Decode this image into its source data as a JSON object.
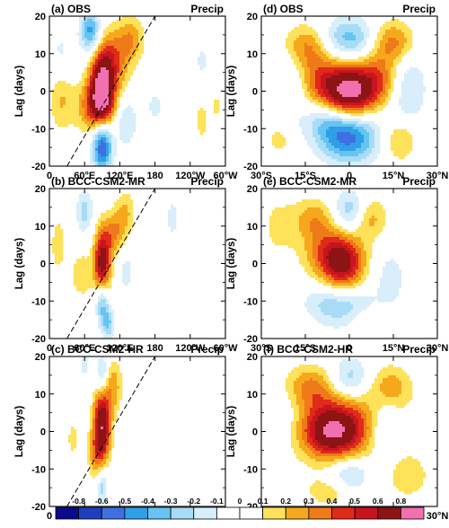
{
  "figure": {
    "panels": [
      {
        "label": "(a) OBS",
        "var": "Precip",
        "type": "lon"
      },
      {
        "label": "(d) OBS",
        "var": "Precip",
        "type": "lat"
      },
      {
        "label": "(b) BCC-CSM2-MR",
        "var": "Precip",
        "type": "lon"
      },
      {
        "label": "(e) BCC-CSM2-MR",
        "var": "Precip",
        "type": "lat"
      },
      {
        "label": "(c) BCC-CSM2-HR",
        "var": "Precip",
        "type": "lon"
      },
      {
        "label": "(f) BCC-CSM2-HR",
        "var": "Precip",
        "type": "lat"
      }
    ],
    "ylabel": "Lag (days)",
    "y_ticks": [
      "20",
      "10",
      "0",
      "-10",
      "-20"
    ],
    "lon_ticks": [
      "0",
      "60°E",
      "120°E",
      "180",
      "120°W",
      "60°W"
    ],
    "lat_ticks": [
      "30°S",
      "15°S",
      "0",
      "15°N",
      "30°N"
    ],
    "colorbar": {
      "levels": [
        "-0.8",
        "-0.6",
        "-0.5",
        "-0.4",
        "-0.3",
        "-0.2",
        "-0.1",
        "0",
        "0.1",
        "0.2",
        "0.3",
        "0.4",
        "0.5",
        "0.6",
        "0.8"
      ],
      "colors": [
        "#0a0a8c",
        "#1f3fbf",
        "#3f6fe0",
        "#2f9fe8",
        "#66c4f2",
        "#a8dcf6",
        "#d8eefb",
        "#ffffff",
        "#ffffff",
        "#fde25a",
        "#f6a81c",
        "#ef7a1a",
        "#e02a1a",
        "#c8141e",
        "#8c1414",
        "#f26fb0"
      ]
    }
  },
  "chart_data": [
    {
      "type": "heatmap",
      "title": "(a) OBS",
      "subtitle": "Precip",
      "xlabel": "",
      "ylabel": "Lag (days)",
      "xlim": [
        0,
        300
      ],
      "ylim": [
        -20,
        20
      ],
      "dashed_line": {
        "x": [
          30,
          180
        ],
        "y": [
          -20,
          20
        ]
      },
      "blobs": [
        {
          "x": 90,
          "y": 0,
          "sx": 14,
          "sy": 7,
          "a": 0.85
        },
        {
          "x": 75,
          "y": -4,
          "sx": 22,
          "sy": 5,
          "a": 0.35
        },
        {
          "x": 110,
          "y": 8,
          "sx": 20,
          "sy": 6,
          "a": 0.35
        },
        {
          "x": 140,
          "y": 14,
          "sx": 16,
          "sy": 4,
          "a": 0.25
        },
        {
          "x": 20,
          "y": 0,
          "sx": 14,
          "sy": 7,
          "a": 0.25
        },
        {
          "x": 260,
          "y": -8,
          "sx": 8,
          "sy": 4,
          "a": 0.15
        },
        {
          "x": 285,
          "y": -4,
          "sx": 6,
          "sy": 4,
          "a": 0.12
        },
        {
          "x": 90,
          "y": -14,
          "sx": 12,
          "sy": 5,
          "a": -0.7
        },
        {
          "x": 70,
          "y": 16,
          "sx": 12,
          "sy": 4,
          "a": -0.45
        },
        {
          "x": 20,
          "y": 8,
          "sx": 16,
          "sy": 6,
          "a": -0.2
        },
        {
          "x": 130,
          "y": -8,
          "sx": 14,
          "sy": 5,
          "a": -0.2
        },
        {
          "x": 180,
          "y": -4,
          "sx": 14,
          "sy": 4,
          "a": -0.12
        },
        {
          "x": 260,
          "y": 8,
          "sx": 10,
          "sy": 4,
          "a": -0.12
        }
      ]
    },
    {
      "type": "heatmap",
      "title": "(d) OBS",
      "subtitle": "Precip",
      "xlabel": "",
      "ylabel": "Lag (days)",
      "xlim": [
        -30,
        30
      ],
      "ylim": [
        -20,
        20
      ],
      "blobs": [
        {
          "x": 0,
          "y": 0,
          "sx": 6,
          "sy": 5,
          "a": 0.9
        },
        {
          "x": -11,
          "y": 3,
          "sx": 5,
          "sy": 5,
          "a": 0.35
        },
        {
          "x": 11,
          "y": 3,
          "sx": 5,
          "sy": 5,
          "a": 0.35
        },
        {
          "x": -15,
          "y": 12,
          "sx": 5,
          "sy": 4,
          "a": 0.3
        },
        {
          "x": 15,
          "y": 13,
          "sx": 5,
          "sy": 4,
          "a": 0.35
        },
        {
          "x": 17,
          "y": -13,
          "sx": 4,
          "sy": 4,
          "a": 0.25
        },
        {
          "x": -24,
          "y": -13,
          "sx": 3,
          "sy": 3,
          "a": 0.15
        },
        {
          "x": 0,
          "y": -12,
          "sx": 7,
          "sy": 5,
          "a": -0.55
        },
        {
          "x": -8,
          "y": -8,
          "sx": 5,
          "sy": 4,
          "a": -0.2
        },
        {
          "x": 0,
          "y": 14,
          "sx": 6,
          "sy": 4,
          "a": -0.35
        },
        {
          "x": 19,
          "y": 1,
          "sx": 5,
          "sy": 7,
          "a": -0.25
        },
        {
          "x": -19,
          "y": 1,
          "sx": 5,
          "sy": 7,
          "a": -0.15
        }
      ]
    },
    {
      "type": "heatmap",
      "title": "(b) BCC-CSM2-MR",
      "subtitle": "Precip",
      "xlabel": "",
      "ylabel": "Lag (days)",
      "xlim": [
        0,
        300
      ],
      "ylim": [
        -20,
        20
      ],
      "dashed_line": {
        "x": [
          30,
          180
        ],
        "y": [
          -20,
          20
        ]
      },
      "blobs": [
        {
          "x": 90,
          "y": 0,
          "sx": 10,
          "sy": 6,
          "a": 0.7
        },
        {
          "x": 110,
          "y": 8,
          "sx": 14,
          "sy": 4,
          "a": 0.3
        },
        {
          "x": 130,
          "y": 14,
          "sx": 12,
          "sy": 4,
          "a": 0.2
        },
        {
          "x": 55,
          "y": -3,
          "sx": 12,
          "sy": 4,
          "a": 0.2
        },
        {
          "x": 15,
          "y": 5,
          "sx": 10,
          "sy": 6,
          "a": 0.15
        },
        {
          "x": 90,
          "y": -10,
          "sx": 8,
          "sy": 4,
          "a": -0.4
        },
        {
          "x": 100,
          "y": -16,
          "sx": 8,
          "sy": 3,
          "a": -0.3
        },
        {
          "x": 60,
          "y": 14,
          "sx": 10,
          "sy": 4,
          "a": -0.25
        },
        {
          "x": 130,
          "y": -2,
          "sx": 10,
          "sy": 4,
          "a": -0.15
        },
        {
          "x": 210,
          "y": 12,
          "sx": 6,
          "sy": 3,
          "a": -0.2
        }
      ]
    },
    {
      "type": "heatmap",
      "title": "(e) BCC-CSM2-MR",
      "subtitle": "Precip",
      "xlabel": "",
      "ylabel": "Lag (days)",
      "xlim": [
        -30,
        30
      ],
      "ylim": [
        -20,
        20
      ],
      "blobs": [
        {
          "x": -2,
          "y": 0,
          "sx": 5,
          "sy": 5,
          "a": 0.6
        },
        {
          "x": -8,
          "y": 3,
          "sx": 6,
          "sy": 5,
          "a": 0.3
        },
        {
          "x": -12,
          "y": 12,
          "sx": 5,
          "sy": 4,
          "a": 0.25
        },
        {
          "x": 7,
          "y": 12,
          "sx": 4,
          "sy": 4,
          "a": 0.25
        },
        {
          "x": 3,
          "y": -14,
          "sx": 5,
          "sy": 3,
          "a": 0.18
        },
        {
          "x": -24,
          "y": 10,
          "sx": 4,
          "sy": 5,
          "a": 0.15
        },
        {
          "x": 0,
          "y": -12,
          "sx": 6,
          "sy": 4,
          "a": -0.35
        },
        {
          "x": -10,
          "y": -10,
          "sx": 5,
          "sy": 4,
          "a": -0.15
        },
        {
          "x": 0,
          "y": 14,
          "sx": 4,
          "sy": 4,
          "a": -0.3
        },
        {
          "x": 14,
          "y": -4,
          "sx": 4,
          "sy": 6,
          "a": -0.15
        }
      ]
    },
    {
      "type": "heatmap",
      "title": "(c) BCC-CSM2-HR",
      "subtitle": "Precip",
      "xlabel": "",
      "ylabel": "Lag (days)",
      "xlim": [
        0,
        300
      ],
      "ylim": [
        -20,
        20
      ],
      "dashed_line": {
        "x": [
          30,
          180
        ],
        "y": [
          -20,
          20
        ]
      },
      "blobs": [
        {
          "x": 90,
          "y": 2,
          "sx": 10,
          "sy": 7,
          "a": 0.75
        },
        {
          "x": 80,
          "y": -6,
          "sx": 10,
          "sy": 5,
          "a": 0.25
        },
        {
          "x": 110,
          "y": 12,
          "sx": 10,
          "sy": 5,
          "a": 0.25
        },
        {
          "x": 40,
          "y": -2,
          "sx": 10,
          "sy": 5,
          "a": 0.12
        },
        {
          "x": 90,
          "y": -14,
          "sx": 7,
          "sy": 4,
          "a": -0.3
        },
        {
          "x": 90,
          "y": 15,
          "sx": 7,
          "sy": 4,
          "a": -0.3
        },
        {
          "x": 60,
          "y": 18,
          "sx": 6,
          "sy": 3,
          "a": -0.15
        }
      ]
    },
    {
      "type": "heatmap",
      "title": "(f) BCC-CSM2-HR",
      "subtitle": "Precip",
      "xlabel": "",
      "ylabel": "Lag (days)",
      "xlim": [
        -30,
        30
      ],
      "ylim": [
        -20,
        20
      ],
      "blobs": [
        {
          "x": -6,
          "y": 0,
          "sx": 7,
          "sy": 5,
          "a": 0.62
        },
        {
          "x": 0,
          "y": 2,
          "sx": 12,
          "sy": 7,
          "a": 0.3
        },
        {
          "x": -13,
          "y": 12,
          "sx": 6,
          "sy": 4,
          "a": 0.3
        },
        {
          "x": 14,
          "y": 12,
          "sx": 5,
          "sy": 4,
          "a": 0.25
        },
        {
          "x": -5,
          "y": -16,
          "sx": 7,
          "sy": 3,
          "a": 0.2
        },
        {
          "x": 20,
          "y": -12,
          "sx": 5,
          "sy": 4,
          "a": 0.18
        },
        {
          "x": 0,
          "y": -12,
          "sx": 5,
          "sy": 4,
          "a": -0.3
        },
        {
          "x": 0,
          "y": 14,
          "sx": 5,
          "sy": 4,
          "a": -0.3
        },
        {
          "x": 12,
          "y": 1,
          "sx": 4,
          "sy": 6,
          "a": -0.25
        },
        {
          "x": -24,
          "y": 4,
          "sx": 5,
          "sy": 5,
          "a": -0.12
        }
      ]
    }
  ]
}
